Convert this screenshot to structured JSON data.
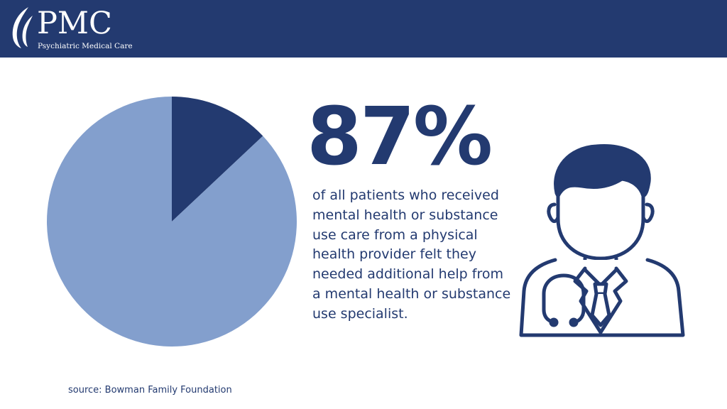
{
  "brand": {
    "letters": "PMC",
    "tagline": "Psychiatric Medical Care",
    "colors": {
      "navy": "#233a70",
      "light_blue": "#839fcd",
      "white": "#ffffff"
    }
  },
  "stat": {
    "value": "87%",
    "description": "of all patients who received mental health or substance use care from a physical health provider felt they needed additional help from a mental health or substance use specialist."
  },
  "source": "source: Bowman Family Foundation",
  "icons": {
    "logo": "leaf-logo-icon",
    "illustration": "doctor-with-stethoscope-icon"
  },
  "chart_data": {
    "type": "pie",
    "title": "",
    "slices": [
      {
        "value": 13,
        "color": "#233a70"
      },
      {
        "value": 87,
        "color": "#839fcd"
      }
    ],
    "start": "12 o'clock",
    "direction": "clockwise",
    "legend": "none"
  }
}
